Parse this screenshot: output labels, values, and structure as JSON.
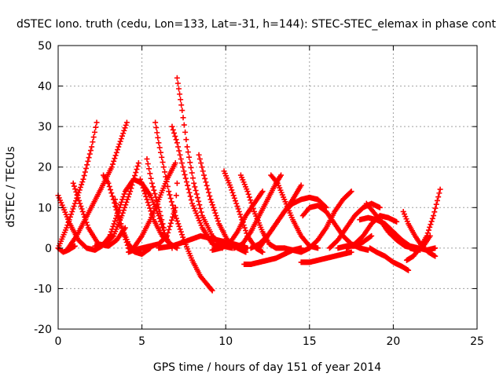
{
  "chart_data": {
    "type": "scatter",
    "title": "dSTEC Iono. truth (cedu, Lon=133, Lat=-31, h=144): STEC-STEC_elemax in phase cont",
    "xlabel": "GPS time / hours of day 151 of year 2014",
    "ylabel": "dSTEC  / TECUs",
    "xlim": [
      0,
      25
    ],
    "ylim": [
      -20,
      50
    ],
    "xticks": [
      0,
      5,
      10,
      15,
      20,
      25
    ],
    "yticks": [
      -20,
      -10,
      0,
      10,
      20,
      30,
      40,
      50
    ],
    "grid": true,
    "marker": "+",
    "series_color": "#ff0000",
    "series": [
      {
        "x": [
          0.0,
          0.5,
          1.0,
          1.5,
          2.0,
          2.3
        ],
        "y": [
          0.0,
          5.0,
          11.0,
          17.0,
          25.0,
          31.0
        ]
      },
      {
        "x": [
          0.0,
          0.3,
          0.7,
          1.2,
          1.7,
          2.2,
          2.6,
          3.1
        ],
        "y": [
          13.0,
          10.0,
          6.0,
          2.0,
          0.0,
          -0.5,
          0.5,
          3.0
        ]
      },
      {
        "x": [
          0.0,
          0.3,
          0.6,
          1.0
        ],
        "y": [
          0.0,
          -1.0,
          -0.5,
          0.5
        ]
      },
      {
        "x": [
          0.6,
          1.1,
          1.6,
          2.1,
          2.6,
          3.2,
          3.6,
          4.1
        ],
        "y": [
          0.0,
          3.0,
          7.0,
          11.0,
          15.0,
          20.0,
          25.0,
          31.0
        ]
      },
      {
        "x": [
          0.9,
          1.3,
          1.8,
          2.4,
          3.0,
          3.5,
          4.0
        ],
        "y": [
          16.0,
          11.0,
          5.0,
          1.0,
          0.5,
          2.0,
          5.0
        ]
      },
      {
        "x": [
          2.2,
          2.8,
          3.3,
          3.8,
          4.3,
          4.8
        ],
        "y": [
          0.5,
          1.0,
          3.0,
          8.0,
          14.0,
          21.0
        ]
      },
      {
        "x": [
          2.7,
          3.0,
          3.3,
          3.7,
          4.2,
          4.6,
          5.0
        ],
        "y": [
          18.0,
          16.0,
          12.0,
          6.0,
          1.0,
          -1.0,
          0.0
        ]
      },
      {
        "x": [
          3.0,
          3.5,
          4.0,
          4.5,
          5.0,
          5.5,
          6.0,
          6.4,
          6.8
        ],
        "y": [
          2.0,
          8.0,
          14.0,
          17.0,
          16.0,
          13.0,
          8.0,
          3.0,
          0.0
        ]
      },
      {
        "x": [
          3.4,
          3.8,
          4.2,
          4.6,
          5.0,
          5.5
        ],
        "y": [
          12.0,
          5.0,
          0.0,
          -1.0,
          -1.5,
          0.0
        ]
      },
      {
        "x": [
          4.2,
          4.5,
          5.0,
          5.5,
          6.0,
          6.5,
          7.0,
          7.1
        ],
        "y": [
          -1.0,
          -0.5,
          0.0,
          0.5,
          1.0,
          3.0,
          10.0,
          16.0
        ]
      },
      {
        "x": [
          4.5,
          5.0,
          5.5,
          6.0,
          6.5,
          7.0
        ],
        "y": [
          0.0,
          3.0,
          7.0,
          12.0,
          17.0,
          21.0
        ]
      },
      {
        "x": [
          4.9,
          5.3,
          5.7,
          6.2,
          6.7,
          7.1
        ],
        "y": [
          17.0,
          12.0,
          7.0,
          3.0,
          1.0,
          0.0
        ]
      },
      {
        "x": [
          5.8,
          6.0,
          6.3,
          6.6,
          7.0,
          7.5,
          8.0,
          8.5,
          9.0,
          9.2
        ],
        "y": [
          31.0,
          26.0,
          20.0,
          14.0,
          8.0,
          2.0,
          -3.0,
          -7.0,
          -9.5,
          -10.5
        ]
      },
      {
        "x": [
          5.3,
          5.6,
          6.0,
          6.3
        ],
        "y": [
          22.0,
          16.0,
          10.0,
          5.0
        ]
      },
      {
        "x": [
          6.8,
          7.1,
          7.5,
          8.0,
          8.6,
          9.2,
          9.8
        ],
        "y": [
          30.0,
          26.0,
          19.0,
          11.0,
          5.0,
          1.0,
          0.0
        ]
      },
      {
        "x": [
          7.1,
          7.4,
          7.7,
          8.1,
          8.6,
          9.2,
          9.8,
          10.4
        ],
        "y": [
          42.0,
          34.0,
          25.0,
          16.0,
          8.0,
          3.0,
          0.5,
          0.0
        ]
      },
      {
        "x": [
          6.0,
          6.8,
          7.5,
          8.5,
          9.5,
          10.5,
          11.3
        ],
        "y": [
          0.0,
          0.5,
          1.5,
          3.0,
          2.0,
          1.0,
          0.0
        ]
      },
      {
        "x": [
          8.4,
          8.7,
          9.1,
          9.6,
          10.1,
          10.7,
          11.2
        ],
        "y": [
          23.0,
          18.0,
          12.0,
          6.0,
          2.0,
          0.0,
          -1.0
        ]
      },
      {
        "x": [
          9.2,
          9.7,
          10.2,
          10.7,
          11.2,
          11.7,
          12.2
        ],
        "y": [
          -0.5,
          0.0,
          1.0,
          4.0,
          8.0,
          11.0,
          14.0
        ]
      },
      {
        "x": [
          9.9,
          10.3,
          10.8,
          11.3,
          11.8,
          12.2
        ],
        "y": [
          19.0,
          15.0,
          9.0,
          3.0,
          0.0,
          -1.0
        ]
      },
      {
        "x": [
          10.5,
          11.0,
          11.5,
          12.0,
          12.5,
          13.0,
          13.3
        ],
        "y": [
          0.0,
          1.0,
          4.0,
          8.0,
          12.0,
          16.0,
          18.0
        ]
      },
      {
        "x": [
          10.9,
          11.3,
          11.7,
          12.2,
          12.6,
          13.0,
          13.5
        ],
        "y": [
          18.0,
          14.0,
          9.0,
          4.0,
          1.0,
          0.0,
          0.0
        ]
      },
      {
        "x": [
          11.1,
          11.5,
          12.0,
          12.5,
          13.0,
          13.5,
          14.0,
          14.5
        ],
        "y": [
          -4.0,
          -4.0,
          -3.5,
          -3.0,
          -2.5,
          -1.5,
          -0.5,
          0.0
        ]
      },
      {
        "x": [
          11.5,
          12.0,
          12.5,
          13.0,
          13.5,
          14.0,
          14.5
        ],
        "y": [
          0.0,
          1.0,
          3.0,
          6.0,
          9.0,
          12.0,
          15.5
        ]
      },
      {
        "x": [
          12.7,
          13.1,
          13.5,
          14.0,
          14.5,
          15.0,
          15.5
        ],
        "y": [
          18.0,
          16.0,
          12.0,
          7.0,
          3.0,
          0.5,
          0.0
        ]
      },
      {
        "x": [
          12.0,
          12.5,
          13.0,
          13.5,
          14.0,
          14.5,
          15.0,
          15.5,
          16.0
        ],
        "y": [
          0.0,
          3.0,
          6.0,
          9.0,
          11.0,
          12.0,
          12.5,
          12.0,
          10.0
        ]
      },
      {
        "x": [
          13.5,
          14.0,
          14.5,
          15.0,
          15.5,
          16.0,
          16.5,
          17.0,
          17.5
        ],
        "y": [
          0.0,
          -0.5,
          -1.0,
          0.0,
          2.0,
          5.0,
          9.0,
          12.0,
          14.0
        ]
      },
      {
        "x": [
          14.5,
          15.0,
          15.5,
          16.0,
          16.5,
          17.0,
          17.5
        ],
        "y": [
          -3.5,
          -3.5,
          -3.0,
          -2.5,
          -2.0,
          -1.5,
          -1.0
        ]
      },
      {
        "x": [
          14.6,
          15.0,
          15.5,
          16.0,
          16.5,
          17.0,
          17.5,
          18.0,
          18.5
        ],
        "y": [
          8.0,
          10.0,
          10.5,
          9.0,
          6.0,
          3.0,
          1.0,
          0.0,
          -0.5
        ]
      },
      {
        "x": [
          16.2,
          16.7,
          17.2,
          17.7,
          18.2,
          18.7,
          19.2
        ],
        "y": [
          0.0,
          2.0,
          5.0,
          8.0,
          10.0,
          11.0,
          10.0
        ]
      },
      {
        "x": [
          17.2,
          17.7,
          18.2,
          18.7,
          19.2,
          19.7,
          20.2
        ],
        "y": [
          0.0,
          1.0,
          3.0,
          6.0,
          8.0,
          7.5,
          6.5
        ]
      },
      {
        "x": [
          16.7,
          17.2,
          17.7,
          18.2,
          18.7
        ],
        "y": [
          0.0,
          0.5,
          0.5,
          1.5,
          3.0
        ]
      },
      {
        "x": [
          18.0,
          18.5,
          19.0,
          19.5,
          20.0,
          20.5,
          21.0,
          21.5,
          22.0,
          22.5
        ],
        "y": [
          7.0,
          7.5,
          7.0,
          6.0,
          4.0,
          2.0,
          0.5,
          0.0,
          -0.5,
          0.0
        ]
      },
      {
        "x": [
          18.4,
          18.8,
          19.2,
          19.7,
          20.2,
          20.7,
          21.2,
          21.6
        ],
        "y": [
          11.0,
          9.0,
          7.0,
          4.0,
          2.0,
          0.5,
          0.0,
          -0.5
        ]
      },
      {
        "x": [
          18.6,
          19.0,
          19.5,
          20.0,
          20.5,
          20.9
        ],
        "y": [
          0.0,
          -1.0,
          -2.0,
          -3.5,
          -4.5,
          -5.5
        ]
      },
      {
        "x": [
          20.6,
          20.9,
          21.3,
          21.7,
          22.1,
          22.5
        ],
        "y": [
          9.0,
          6.0,
          3.0,
          0.5,
          -1.0,
          -2.0
        ]
      },
      {
        "x": [
          20.8,
          21.2,
          21.6,
          22.0,
          22.4,
          22.8
        ],
        "y": [
          -3.0,
          -2.0,
          0.0,
          3.0,
          8.0,
          14.5
        ]
      },
      {
        "x": [
          21.0,
          21.4,
          21.8,
          22.2
        ],
        "y": [
          0.0,
          -0.5,
          0.5,
          3.0
        ]
      }
    ]
  }
}
